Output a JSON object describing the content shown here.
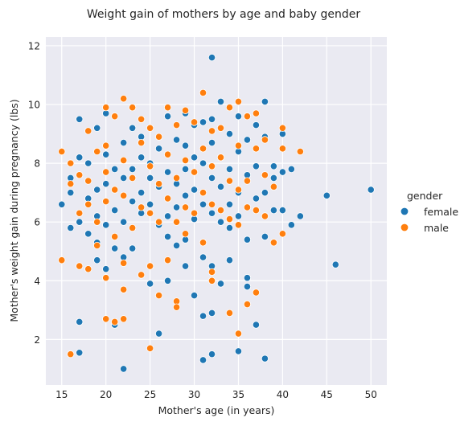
{
  "chart_data": {
    "type": "scatter",
    "title": "Weight gain of mothers by age and baby gender",
    "xlabel": "Mother's age (in years)",
    "ylabel": "Mother's weight gain during pregnancy (lbs)",
    "xlim": [
      13.2,
      51.8
    ],
    "ylim": [
      0.45,
      12.3
    ],
    "xticks": [
      15,
      20,
      25,
      30,
      35,
      40,
      45,
      50
    ],
    "yticks": [
      2,
      4,
      6,
      8,
      10,
      12
    ],
    "grid": true,
    "legend": {
      "title": "gender",
      "placement": "right"
    },
    "series": [
      {
        "name": "female",
        "color": "#1f77b4",
        "points": [
          [
            15,
            6.6
          ],
          [
            16,
            5.8
          ],
          [
            16,
            7.0
          ],
          [
            16,
            7.5
          ],
          [
            17,
            9.5
          ],
          [
            17,
            6.0
          ],
          [
            17,
            8.2
          ],
          [
            17,
            2.6
          ],
          [
            17,
            1.55
          ],
          [
            18,
            5.6
          ],
          [
            18,
            6.8
          ],
          [
            18,
            8.0
          ],
          [
            19,
            9.2
          ],
          [
            19,
            5.3
          ],
          [
            19,
            6.2
          ],
          [
            19,
            7.1
          ],
          [
            19,
            4.7
          ],
          [
            20,
            5.9
          ],
          [
            20,
            7.3
          ],
          [
            20,
            9.7
          ],
          [
            20,
            8.3
          ],
          [
            20,
            4.4
          ],
          [
            21,
            2.5
          ],
          [
            21,
            6.4
          ],
          [
            21,
            7.8
          ],
          [
            21,
            5.1
          ],
          [
            22,
            8.7
          ],
          [
            22,
            6.0
          ],
          [
            22,
            7.5
          ],
          [
            22,
            1.0
          ],
          [
            22,
            4.8
          ],
          [
            23,
            9.2
          ],
          [
            23,
            6.7
          ],
          [
            23,
            7.8
          ],
          [
            23,
            5.1
          ],
          [
            24,
            8.2
          ],
          [
            24,
            6.3
          ],
          [
            24,
            7.0
          ],
          [
            24,
            8.9
          ],
          [
            25,
            8.0
          ],
          [
            25,
            6.6
          ],
          [
            25,
            7.5
          ],
          [
            25,
            3.9
          ],
          [
            26,
            7.2
          ],
          [
            26,
            8.5
          ],
          [
            26,
            5.9
          ],
          [
            26,
            2.2
          ],
          [
            27,
            9.6
          ],
          [
            27,
            6.2
          ],
          [
            27,
            7.7
          ],
          [
            27,
            5.5
          ],
          [
            27,
            4.0
          ],
          [
            28,
            8.8
          ],
          [
            28,
            6.5
          ],
          [
            28,
            7.3
          ],
          [
            28,
            5.2
          ],
          [
            29,
            9.7
          ],
          [
            29,
            6.9
          ],
          [
            29,
            7.8
          ],
          [
            29,
            8.6
          ],
          [
            29,
            5.4
          ],
          [
            29,
            4.5
          ],
          [
            30,
            9.3
          ],
          [
            30,
            7.1
          ],
          [
            30,
            6.1
          ],
          [
            30,
            8.2
          ],
          [
            30,
            3.5
          ],
          [
            31,
            8.0
          ],
          [
            31,
            9.4
          ],
          [
            31,
            6.6
          ],
          [
            31,
            4.8
          ],
          [
            31,
            2.8
          ],
          [
            31,
            1.3
          ],
          [
            32,
            11.6
          ],
          [
            32,
            9.5
          ],
          [
            32,
            7.5
          ],
          [
            32,
            8.7
          ],
          [
            32,
            6.3
          ],
          [
            32,
            4.5
          ],
          [
            32,
            2.9
          ],
          [
            32,
            1.5
          ],
          [
            33,
            10.1
          ],
          [
            33,
            6.0
          ],
          [
            33,
            8.2
          ],
          [
            33,
            7.2
          ],
          [
            33,
            3.9
          ],
          [
            34,
            9.0
          ],
          [
            34,
            7.8
          ],
          [
            34,
            6.6
          ],
          [
            34,
            5.8
          ],
          [
            34,
            4.7
          ],
          [
            35,
            9.6
          ],
          [
            35,
            8.4
          ],
          [
            35,
            7.0
          ],
          [
            35,
            6.2
          ],
          [
            35,
            1.6
          ],
          [
            36,
            8.8
          ],
          [
            36,
            7.6
          ],
          [
            36,
            4.1
          ],
          [
            36,
            3.8
          ],
          [
            36,
            5.4
          ],
          [
            37,
            9.3
          ],
          [
            37,
            6.8
          ],
          [
            37,
            7.9
          ],
          [
            37,
            2.5
          ],
          [
            38,
            10.1
          ],
          [
            38,
            8.9
          ],
          [
            38,
            7.0
          ],
          [
            38,
            5.5
          ],
          [
            38,
            1.35
          ],
          [
            39,
            7.9
          ],
          [
            39,
            6.4
          ],
          [
            39,
            7.5
          ],
          [
            40,
            9.0
          ],
          [
            40,
            7.7
          ],
          [
            40,
            6.4
          ],
          [
            41,
            7.8
          ],
          [
            41,
            5.9
          ],
          [
            42,
            6.2
          ],
          [
            45,
            6.9
          ],
          [
            46,
            4.55
          ],
          [
            50,
            7.1
          ]
        ]
      },
      {
        "name": "male",
        "color": "#ff7f0e",
        "points": [
          [
            15,
            8.4
          ],
          [
            15,
            4.7
          ],
          [
            16,
            1.5
          ],
          [
            16,
            7.3
          ],
          [
            16,
            8.0
          ],
          [
            17,
            6.3
          ],
          [
            17,
            4.5
          ],
          [
            17,
            7.6
          ],
          [
            18,
            6.6
          ],
          [
            18,
            9.1
          ],
          [
            18,
            4.4
          ],
          [
            18,
            7.4
          ],
          [
            19,
            8.4
          ],
          [
            19,
            6.0
          ],
          [
            19,
            5.2
          ],
          [
            20,
            9.9
          ],
          [
            20,
            8.6
          ],
          [
            20,
            6.7
          ],
          [
            20,
            4.1
          ],
          [
            20,
            2.7
          ],
          [
            20,
            7.7
          ],
          [
            21,
            9.6
          ],
          [
            21,
            7.1
          ],
          [
            21,
            5.5
          ],
          [
            21,
            2.6
          ],
          [
            22,
            10.2
          ],
          [
            22,
            8.1
          ],
          [
            22,
            6.9
          ],
          [
            22,
            4.6
          ],
          [
            22,
            3.7
          ],
          [
            22,
            2.7
          ],
          [
            23,
            9.9
          ],
          [
            23,
            7.5
          ],
          [
            23,
            5.8
          ],
          [
            24,
            9.5
          ],
          [
            24,
            8.7
          ],
          [
            24,
            6.5
          ],
          [
            24,
            4.2
          ],
          [
            25,
            9.2
          ],
          [
            25,
            7.9
          ],
          [
            25,
            6.3
          ],
          [
            25,
            4.5
          ],
          [
            25,
            1.7
          ],
          [
            26,
            8.9
          ],
          [
            26,
            7.3
          ],
          [
            26,
            6.0
          ],
          [
            26,
            3.5
          ],
          [
            27,
            9.9
          ],
          [
            27,
            8.3
          ],
          [
            27,
            6.8
          ],
          [
            27,
            4.7
          ],
          [
            28,
            9.3
          ],
          [
            28,
            7.5
          ],
          [
            28,
            6.0
          ],
          [
            28,
            3.3
          ],
          [
            28,
            3.1
          ],
          [
            29,
            9.8
          ],
          [
            29,
            8.1
          ],
          [
            29,
            6.5
          ],
          [
            29,
            5.6
          ],
          [
            30,
            9.4
          ],
          [
            30,
            7.7
          ],
          [
            30,
            6.3
          ],
          [
            31,
            10.4
          ],
          [
            31,
            8.5
          ],
          [
            31,
            7.0
          ],
          [
            31,
            5.3
          ],
          [
            32,
            9.1
          ],
          [
            32,
            7.9
          ],
          [
            32,
            6.6
          ],
          [
            32,
            4.3
          ],
          [
            32,
            4.0
          ],
          [
            33,
            9.2
          ],
          [
            33,
            8.2
          ],
          [
            33,
            6.4
          ],
          [
            34,
            9.9
          ],
          [
            34,
            7.4
          ],
          [
            34,
            6.1
          ],
          [
            34,
            2.9
          ],
          [
            35,
            10.1
          ],
          [
            35,
            8.6
          ],
          [
            35,
            7.1
          ],
          [
            35,
            5.9
          ],
          [
            35,
            2.2
          ],
          [
            36,
            9.6
          ],
          [
            36,
            7.4
          ],
          [
            36,
            6.5
          ],
          [
            36,
            3.2
          ],
          [
            37,
            9.7
          ],
          [
            37,
            8.5
          ],
          [
            37,
            6.4
          ],
          [
            37,
            3.6
          ],
          [
            38,
            8.8
          ],
          [
            38,
            7.6
          ],
          [
            38,
            6.2
          ],
          [
            39,
            7.2
          ],
          [
            39,
            5.3
          ],
          [
            40,
            9.2
          ],
          [
            40,
            8.5
          ],
          [
            40,
            5.6
          ],
          [
            42,
            8.4
          ]
        ]
      }
    ]
  }
}
